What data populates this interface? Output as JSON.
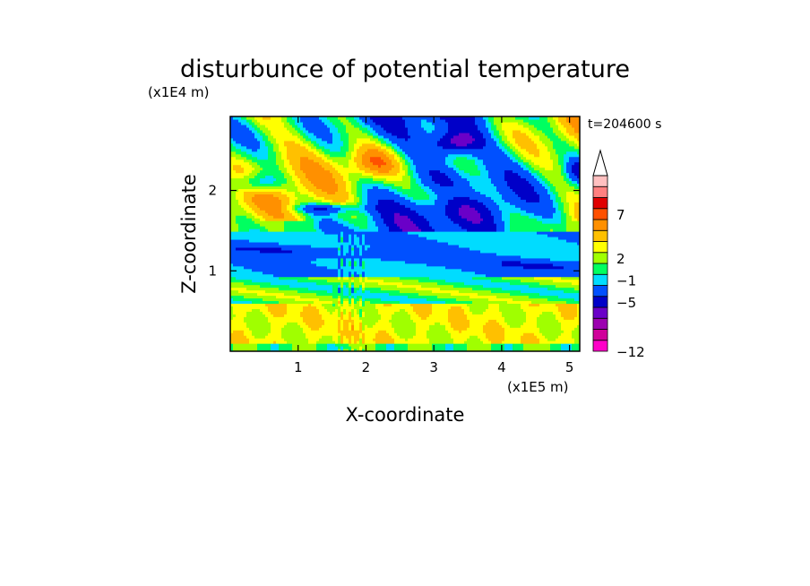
{
  "chart_data": {
    "type": "heatmap",
    "title": "disturbunce of potential temperature",
    "xlabel": "X-coordinate",
    "ylabel": "Z-coordinate",
    "x_unit": "(x1E5 m)",
    "y_unit": "(x1E4 m)",
    "time_label": "t=204600 s",
    "xlim": [
      0,
      5.15
    ],
    "ylim": [
      0,
      2.92
    ],
    "x_ticks": [
      1,
      2,
      3,
      4,
      5
    ],
    "y_ticks": [
      1,
      2
    ],
    "colorbar": {
      "levels": [
        -12,
        -5,
        -1,
        2,
        7
      ],
      "colors": [
        "#ff00c8",
        "#d0009a",
        "#9c00b0",
        "#6a00c8",
        "#0000c8",
        "#0050ff",
        "#00dcff",
        "#00ff60",
        "#a0ff00",
        "#ffff00",
        "#ffc000",
        "#ff9000",
        "#ff5000",
        "#e00000",
        "#ff8080",
        "#ffc0c0"
      ],
      "extend": "max"
    },
    "field_description_bands": [
      {
        "z_range": [
          0.0,
          0.1
        ],
        "dominant": "yellow/green"
      },
      {
        "z_range": [
          0.1,
          0.6
        ],
        "dominant": "yellow/orange"
      },
      {
        "z_range": [
          0.6,
          0.9
        ],
        "dominant": "green/yellow"
      },
      {
        "z_range": [
          0.9,
          1.5
        ],
        "dominant": "cyan/green (negative)"
      },
      {
        "z_range": [
          1.5,
          2.2
        ],
        "dominant": "orange/red with blue patches"
      },
      {
        "z_range": [
          2.2,
          2.92
        ],
        "dominant": "mixed orange/blue/green"
      }
    ]
  }
}
